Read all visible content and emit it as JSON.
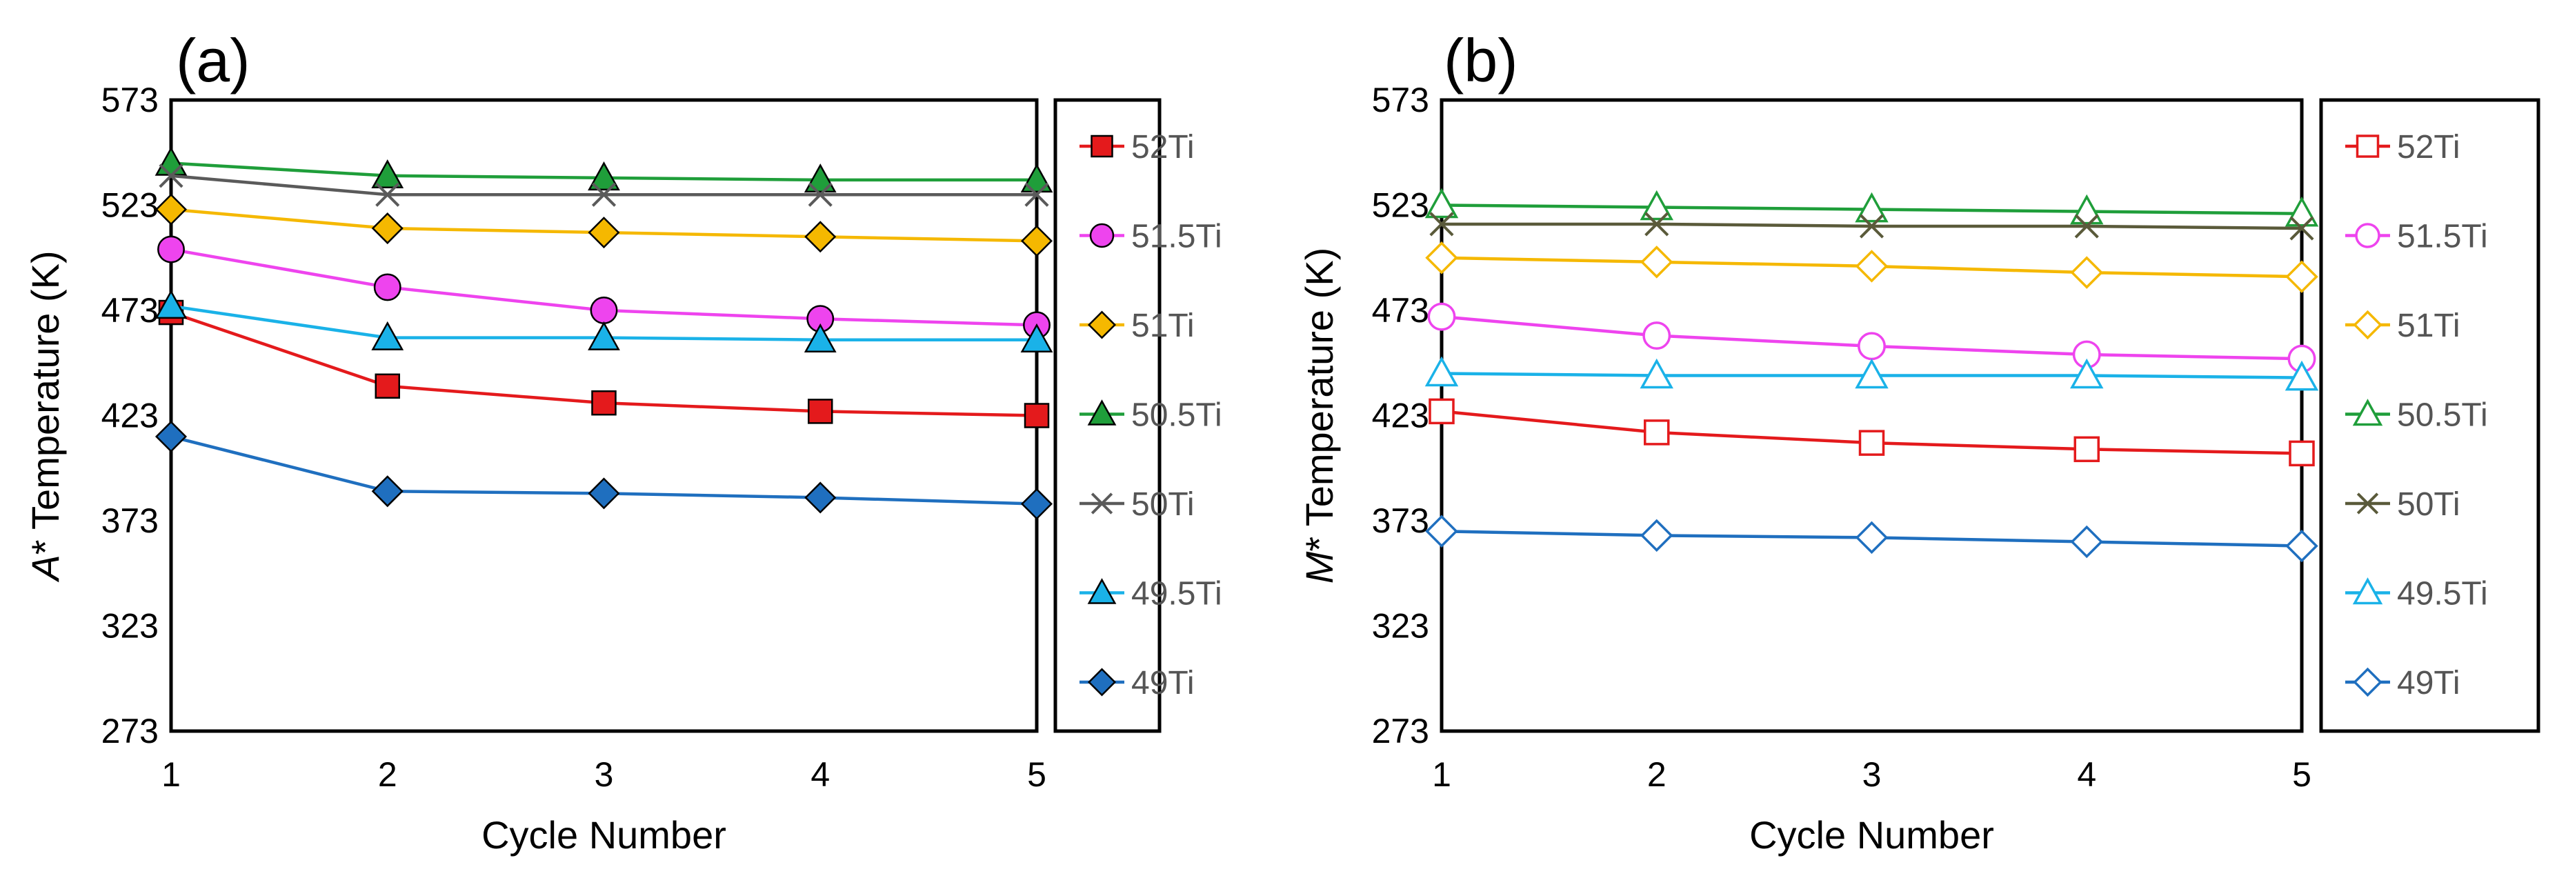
{
  "chart_data": [
    {
      "panel_label": "(a)",
      "type": "line",
      "title": "",
      "xlabel": "Cycle Number",
      "ylabel_prefix": "A",
      "ylabel_rest": "* Temperature (K)",
      "x": [
        1,
        2,
        3,
        4,
        5
      ],
      "x_ticks": [
        "1",
        "2",
        "3",
        "4",
        "5"
      ],
      "y_ticks": [
        "273",
        "323",
        "373",
        "423",
        "473",
        "523",
        "573"
      ],
      "ylim": [
        273,
        573
      ],
      "grid": false,
      "legend_position": "right",
      "series": [
        {
          "name": "52Ti",
          "color": "#e41a1c",
          "marker": "square",
          "filled": true,
          "values": [
            472,
            437,
            429,
            425,
            423
          ]
        },
        {
          "name": "51.5Ti",
          "color": "#ee44ee",
          "marker": "circle",
          "filled": true,
          "values": [
            502,
            484,
            473,
            469,
            466
          ]
        },
        {
          "name": "51Ti",
          "color": "#f5b800",
          "marker": "diamond",
          "filled": true,
          "values": [
            521,
            512,
            510,
            508,
            506
          ]
        },
        {
          "name": "50.5Ti",
          "color": "#1f9e3a",
          "marker": "triangle",
          "filled": true,
          "values": [
            543,
            537,
            536,
            535,
            535
          ]
        },
        {
          "name": "50Ti",
          "color": "#5a5a5a",
          "marker": "x",
          "filled": false,
          "values": [
            537,
            528,
            528,
            528,
            528
          ]
        },
        {
          "name": "49.5Ti",
          "color": "#1ab2e8",
          "marker": "triangle",
          "filled": true,
          "values": [
            475,
            460,
            460,
            459,
            459
          ]
        },
        {
          "name": "49Ti",
          "color": "#1f6fbf",
          "marker": "diamond",
          "filled": true,
          "values": [
            413,
            387,
            386,
            384,
            381
          ]
        }
      ]
    },
    {
      "panel_label": "(b)",
      "type": "line",
      "title": "",
      "xlabel": "Cycle Number",
      "ylabel_prefix": "M",
      "ylabel_rest": "* Temperature (K)",
      "x": [
        1,
        2,
        3,
        4,
        5
      ],
      "x_ticks": [
        "1",
        "2",
        "3",
        "4",
        "5"
      ],
      "y_ticks": [
        "273",
        "323",
        "373",
        "423",
        "473",
        "523",
        "573"
      ],
      "ylim": [
        273,
        573
      ],
      "grid": false,
      "legend_position": "right",
      "series": [
        {
          "name": "52Ti",
          "color": "#e41a1c",
          "marker": "square",
          "filled": false,
          "values": [
            425,
            415,
            410,
            407,
            405
          ]
        },
        {
          "name": "51.5Ti",
          "color": "#ee44ee",
          "marker": "circle",
          "filled": false,
          "values": [
            470,
            461,
            456,
            452,
            450
          ]
        },
        {
          "name": "51Ti",
          "color": "#f5b800",
          "marker": "diamond",
          "filled": false,
          "values": [
            498,
            496,
            494,
            491,
            489
          ]
        },
        {
          "name": "50.5Ti",
          "color": "#1f9e3a",
          "marker": "triangle",
          "filled": false,
          "values": [
            523,
            522,
            521,
            520,
            519
          ]
        },
        {
          "name": "50Ti",
          "color": "#5a5a3a",
          "marker": "x",
          "filled": false,
          "values": [
            514,
            514,
            513,
            513,
            512
          ]
        },
        {
          "name": "49.5Ti",
          "color": "#1ab2e8",
          "marker": "triangle",
          "filled": false,
          "values": [
            443,
            442,
            442,
            442,
            441
          ]
        },
        {
          "name": "49Ti",
          "color": "#1f6fbf",
          "marker": "diamond",
          "filled": false,
          "values": [
            368,
            366,
            365,
            363,
            361
          ]
        }
      ]
    }
  ]
}
